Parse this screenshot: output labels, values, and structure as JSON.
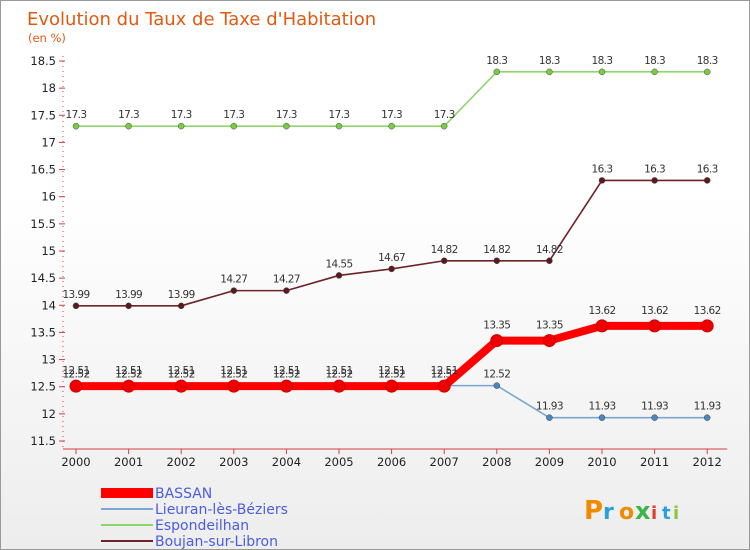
{
  "chart_data": {
    "type": "line",
    "title": "Evolution du Taux de Taxe d'Habitation",
    "subtitle": "(en %)",
    "x": [
      "2000",
      "2001",
      "2002",
      "2003",
      "2004",
      "2005",
      "2006",
      "2007",
      "2008",
      "2009",
      "2010",
      "2011",
      "2012"
    ],
    "ylim": [
      11.5,
      18.5
    ],
    "yticks": [
      "11.5",
      "12",
      "12.5",
      "13",
      "13.5",
      "14",
      "14.5",
      "15",
      "15.5",
      "16",
      "16.5",
      "17",
      "17.5",
      "18",
      "18.5"
    ],
    "grid": false,
    "legend_position": "bottom-left",
    "series": [
      {
        "name": "Boujan-sur-Libron",
        "color": "#6b2228",
        "marker": "#5a1a20",
        "values": [
          13.99,
          13.99,
          13.99,
          14.27,
          14.27,
          14.55,
          14.67,
          14.82,
          14.82,
          14.82,
          16.3,
          16.3,
          16.3
        ],
        "labels": [
          "13.99",
          "13.99",
          "13.99",
          "14.27",
          "14.27",
          "14.55",
          "14.67",
          "14.82",
          "14.82",
          "14.82",
          "16.3",
          "16.3",
          "16.3"
        ]
      },
      {
        "name": "Espondeilhan",
        "color": "#8fd66a",
        "marker": "#7acc44",
        "values": [
          17.3,
          17.3,
          17.3,
          17.3,
          17.3,
          17.3,
          17.3,
          17.3,
          18.3,
          18.3,
          18.3,
          18.3,
          18.3
        ],
        "labels": [
          "17.3",
          "17.3",
          "17.3",
          "17.3",
          "17.3",
          "17.3",
          "17.3",
          "17.3",
          "18.3",
          "18.3",
          "18.3",
          "18.3",
          "18.3"
        ]
      },
      {
        "name": "Lieuran-lès-Béziers",
        "color": "#7aa7cf",
        "marker": "#4a86c0",
        "values": [
          12.52,
          12.52,
          12.52,
          12.52,
          12.52,
          12.52,
          12.52,
          12.52,
          12.52,
          11.93,
          11.93,
          11.93,
          11.93
        ],
        "labels": [
          "12.52",
          "12.52",
          "12.52",
          "12.52",
          "12.52",
          "12.52",
          "12.52",
          "12.52",
          "12.52",
          "11.93",
          "11.93",
          "11.93",
          "11.93"
        ]
      },
      {
        "name": "BASSAN",
        "color": "#ff0000",
        "marker": "#ee0000",
        "values": [
          12.51,
          12.51,
          12.51,
          12.51,
          12.51,
          12.51,
          12.51,
          12.51,
          13.35,
          13.35,
          13.62,
          13.62,
          13.62
        ],
        "labels": [
          "12.51",
          "12.51",
          "12.51",
          "12.51",
          "12.51",
          "12.51",
          "12.51",
          "12.51",
          "13.35",
          "13.35",
          "13.62",
          "13.62",
          "13.62"
        ]
      }
    ],
    "legend_order": [
      "BASSAN",
      "Lieuran-lès-Béziers",
      "Espondeilhan",
      "Boujan-sur-Libron"
    ]
  },
  "logo": {
    "text": "Proxiti",
    "colors": [
      "#f08a00",
      "#2aa0d8",
      "#f08a00",
      "#3cb44a",
      "#e63a2a",
      "#2aa0d8",
      "#8cc63f"
    ]
  }
}
